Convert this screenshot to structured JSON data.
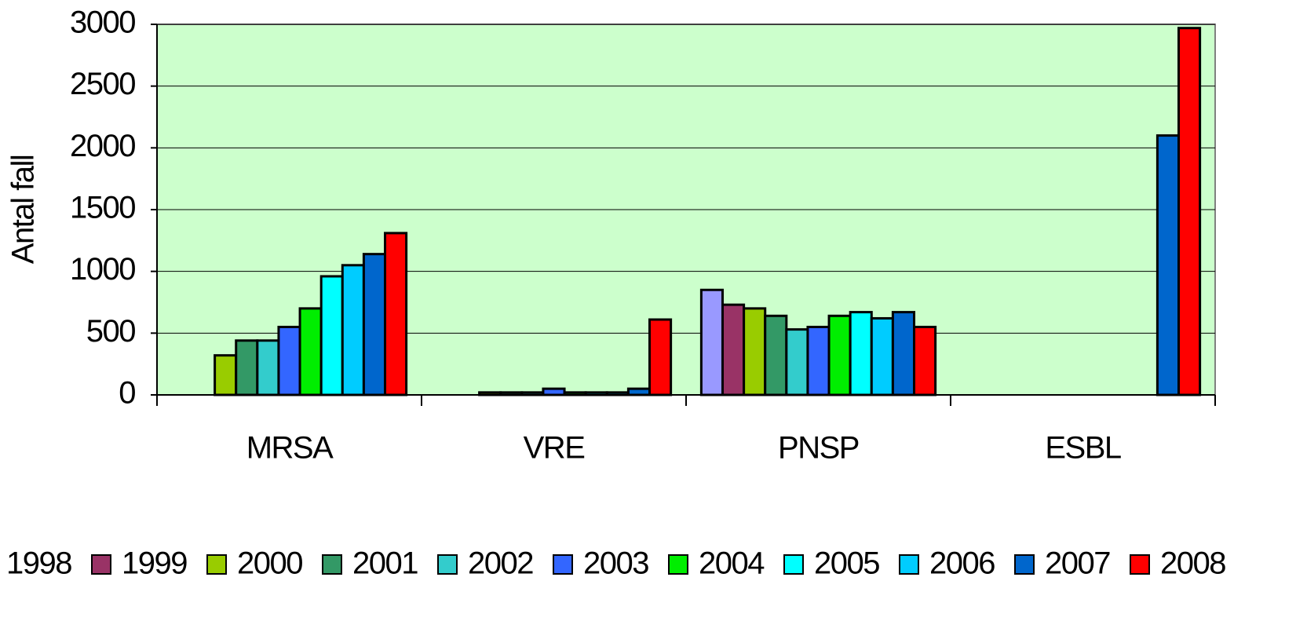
{
  "chart_data": {
    "type": "bar",
    "y_label": "Antal fall",
    "categories": [
      "MRSA",
      "VRE",
      "PNSP",
      "ESBL"
    ],
    "ylim": [
      0,
      3000
    ],
    "yticks": [
      0,
      500,
      1000,
      1500,
      2000,
      2500,
      3000
    ],
    "grid": true,
    "plot_background": "#ccffcc",
    "legend": "bottom",
    "series": [
      {
        "name": "1998",
        "color": "#9999ff",
        "values": [
          null,
          null,
          850,
          null
        ]
      },
      {
        "name": "1999",
        "color": "#993366",
        "values": [
          null,
          null,
          730,
          null
        ]
      },
      {
        "name": "2000",
        "color": "#99cc00",
        "values": [
          320,
          20,
          700,
          null
        ]
      },
      {
        "name": "2001",
        "color": "#339966",
        "values": [
          440,
          20,
          640,
          null
        ]
      },
      {
        "name": "2002",
        "color": "#33cccc",
        "values": [
          440,
          20,
          530,
          null
        ]
      },
      {
        "name": "2003",
        "color": "#3366ff",
        "values": [
          550,
          50,
          550,
          null
        ]
      },
      {
        "name": "2004",
        "color": "#00ee00",
        "values": [
          700,
          20,
          640,
          null
        ]
      },
      {
        "name": "2005",
        "color": "#00ffff",
        "values": [
          960,
          20,
          670,
          null
        ]
      },
      {
        "name": "2006",
        "color": "#00ccff",
        "values": [
          1050,
          20,
          620,
          null
        ]
      },
      {
        "name": "2007",
        "color": "#0066cc",
        "values": [
          1140,
          50,
          670,
          2100
        ]
      },
      {
        "name": "2008",
        "color": "#ff0000",
        "values": [
          1310,
          610,
          550,
          2970
        ]
      }
    ]
  }
}
